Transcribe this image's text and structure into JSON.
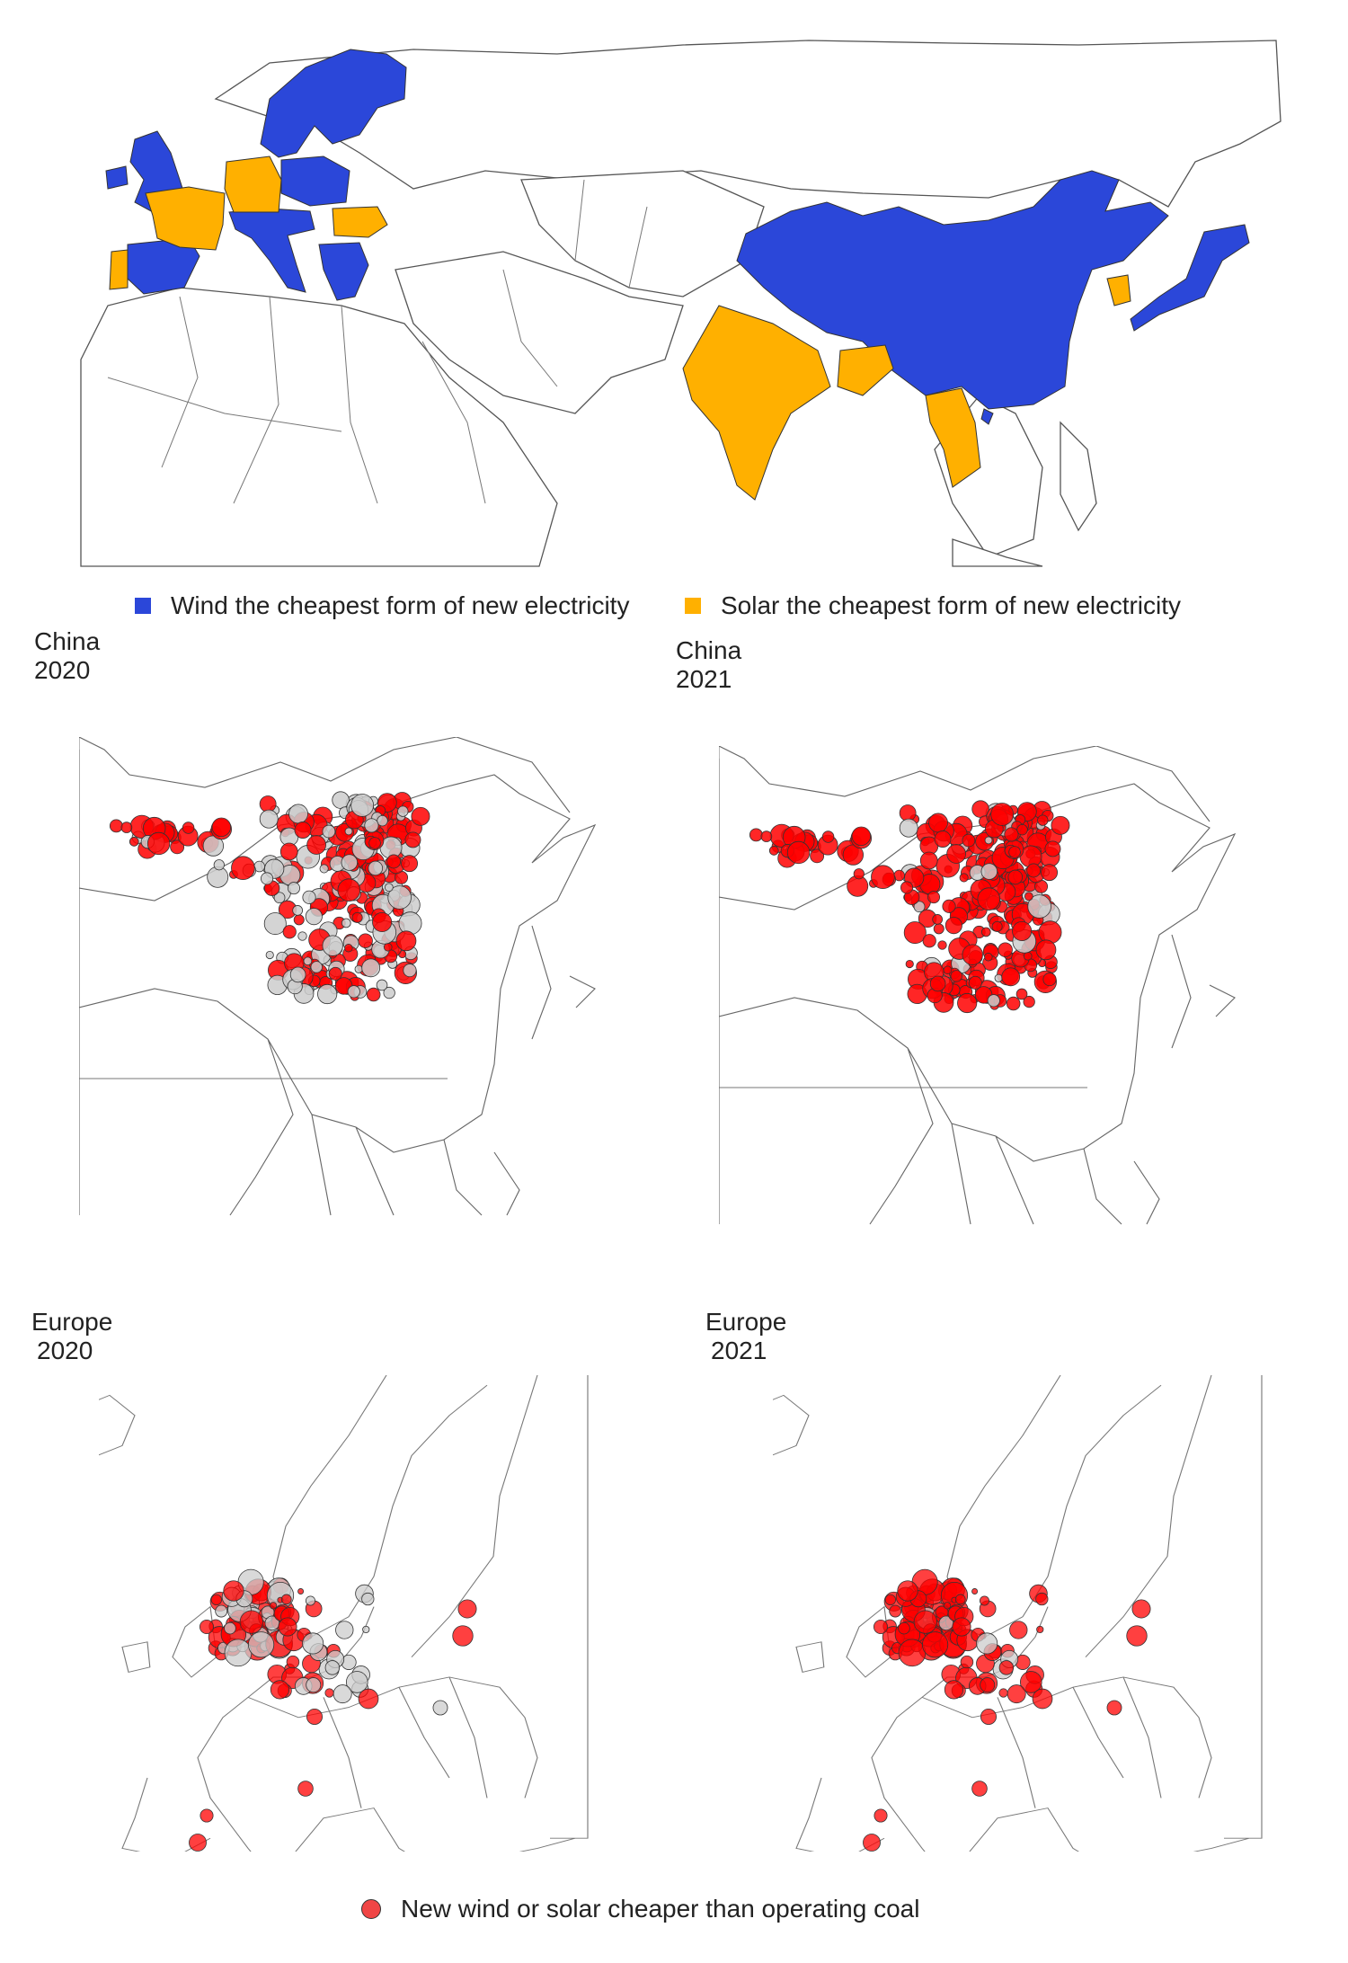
{
  "colors": {
    "wind": "#2b47d9",
    "solar": "#ffb000",
    "cheaper_dot": "#ff0000",
    "other_dot": "#cccccc",
    "border": "#555555"
  },
  "top_map": {
    "legend": [
      {
        "label": "Wind the cheapest form of new electricity",
        "color": "#2b47d9"
      },
      {
        "label": "Solar the cheapest form of new electricity",
        "color": "#ffb000"
      }
    ]
  },
  "panels": {
    "china_2020": {
      "region": "China",
      "year": "2020"
    },
    "china_2021": {
      "region": "China",
      "year": "2021"
    },
    "europe_2020": {
      "region": "Europe",
      "year": "2020"
    },
    "europe_2021": {
      "region": "Europe",
      "year": "2021"
    }
  },
  "bottom_legend": {
    "label": "New wind or solar cheaper than operating coal",
    "icon": "red-circle"
  }
}
